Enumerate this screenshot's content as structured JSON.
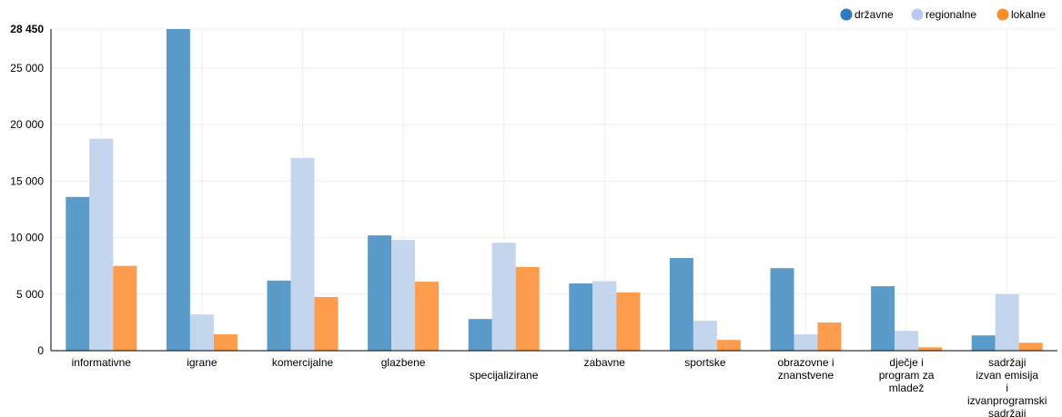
{
  "chart_data": {
    "type": "bar",
    "title": "",
    "xlabel": "",
    "ylabel": "",
    "ylim": [
      0,
      28450
    ],
    "yticks": [
      {
        "value": 0,
        "label": "0"
      },
      {
        "value": 5000,
        "label": "5 000"
      },
      {
        "value": 10000,
        "label": "10 000"
      },
      {
        "value": 15000,
        "label": "15 000"
      },
      {
        "value": 20000,
        "label": "20 000"
      },
      {
        "value": 25000,
        "label": "25 000"
      },
      {
        "value": 28450,
        "label": "28 450",
        "bold": true
      }
    ],
    "grid": true,
    "legend_position": "top-right",
    "categories": [
      "informativne",
      "igrane",
      "komercijalne",
      "glazbene",
      "specijalizirane",
      "zabavne",
      "sportske",
      "obrazovne i znanstvene",
      "dječje i program za mladež",
      "sadržaji izvan emisija i izvanprogramski sadržaji"
    ],
    "category_label_lines": [
      [
        "informativne"
      ],
      [
        "igrane"
      ],
      [
        "komercijalne"
      ],
      [
        "glazbene"
      ],
      [
        "",
        "specijalizirane"
      ],
      [
        "zabavne"
      ],
      [
        "sportske"
      ],
      [
        "obrazovne i",
        "znanstvene"
      ],
      [
        "dječje i",
        "program za",
        "mladež"
      ],
      [
        "sadržaji",
        "izvan emisija",
        "i",
        "izvanprogramski",
        "sadržaji"
      ]
    ],
    "series": [
      {
        "name": "državne",
        "color": "#5b9bca",
        "legend_color": "#2f7bbf",
        "values": [
          13600,
          28450,
          6200,
          10200,
          2800,
          5950,
          8200,
          7300,
          5700,
          1350
        ]
      },
      {
        "name": "regionalne",
        "color": "#c4d6ee",
        "legend_color": "#b7cdeb",
        "values": [
          18750,
          3200,
          17050,
          9800,
          9550,
          6150,
          2650,
          1450,
          1750,
          5000
        ]
      },
      {
        "name": "lokalne",
        "color": "#fc9c4c",
        "legend_color": "#fd8f2b",
        "values": [
          7500,
          1450,
          4750,
          6100,
          7400,
          5150,
          950,
          2500,
          300,
          700
        ]
      }
    ]
  }
}
